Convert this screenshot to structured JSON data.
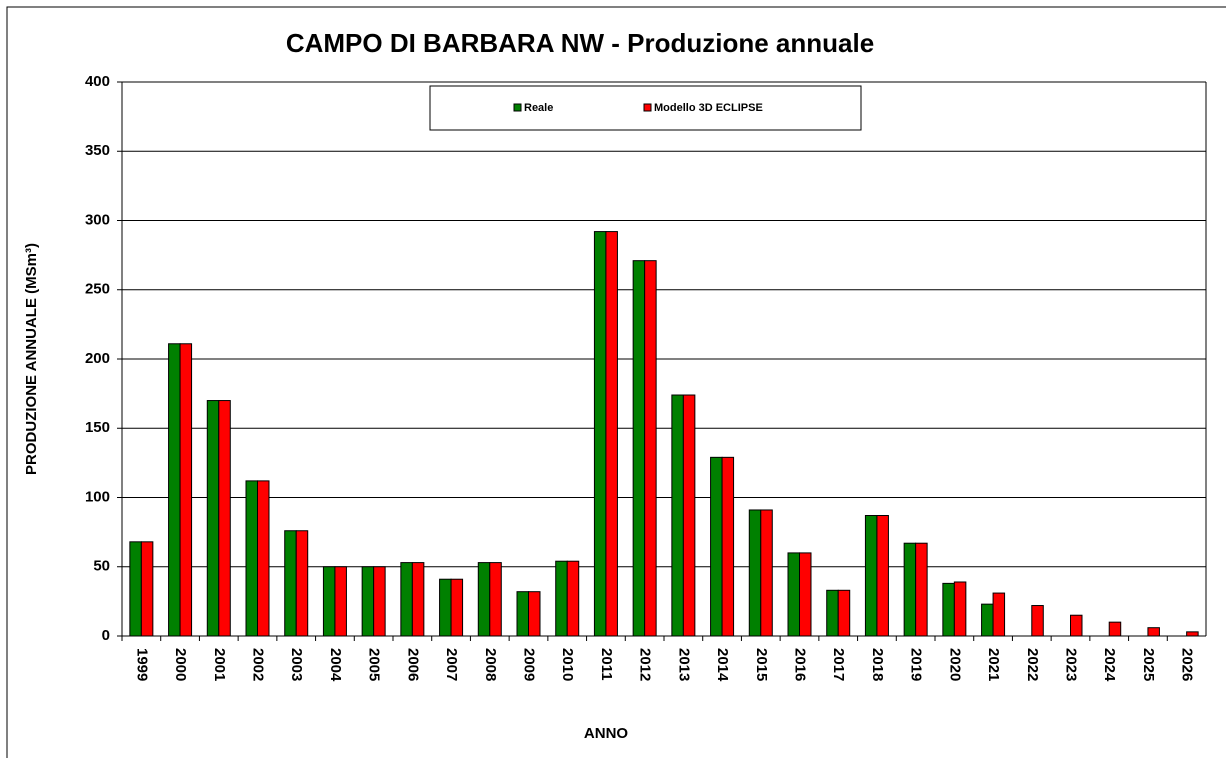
{
  "chart_data": {
    "type": "bar",
    "title": "CAMPO DI BARBARA NW - Produzione annuale",
    "x_label": "ANNO",
    "y_label": "PRODUZIONE ANNUALE (MSm³)",
    "categories": [
      "1999",
      "2000",
      "2001",
      "2002",
      "2003",
      "2004",
      "2005",
      "2006",
      "2007",
      "2008",
      "2009",
      "2010",
      "2011",
      "2012",
      "2013",
      "2014",
      "2015",
      "2016",
      "2017",
      "2018",
      "2019",
      "2020",
      "2021",
      "2022",
      "2023",
      "2024",
      "2025",
      "2026"
    ],
    "series": [
      {
        "name": "Reale",
        "color": "#008000",
        "values": [
          68,
          211,
          170,
          112,
          76,
          50,
          50,
          53,
          41,
          53,
          32,
          54,
          292,
          271,
          174,
          129,
          91,
          60,
          33,
          87,
          67,
          38,
          23,
          null,
          null,
          null,
          null,
          null
        ]
      },
      {
        "name": "Modello 3D ECLIPSE",
        "color": "#ff0000",
        "values": [
          68,
          211,
          170,
          112,
          76,
          50,
          50,
          53,
          41,
          53,
          32,
          54,
          292,
          271,
          174,
          129,
          91,
          60,
          33,
          87,
          67,
          39,
          31,
          22,
          15,
          10,
          6,
          3
        ]
      }
    ],
    "ylim": [
      0,
      400
    ],
    "yticks": [
      0,
      50,
      100,
      150,
      200,
      250,
      300,
      350,
      400
    ],
    "grid": true,
    "legend": "top"
  }
}
